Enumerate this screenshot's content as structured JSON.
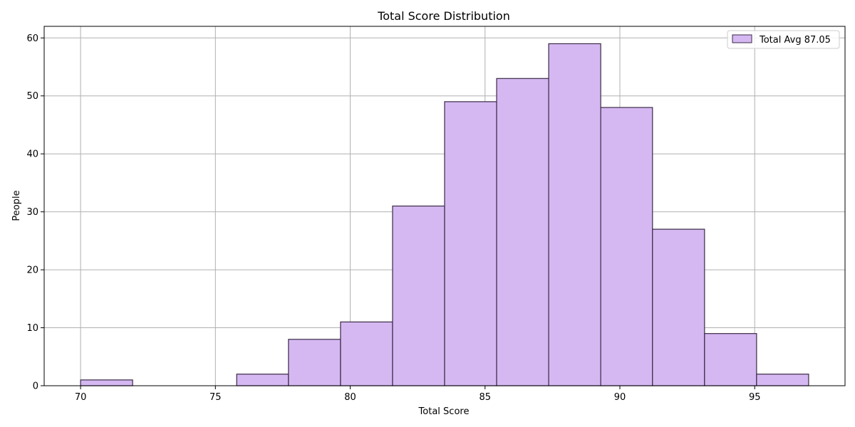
{
  "chart_data": {
    "type": "bar",
    "title": "Total Score Distribution",
    "xlabel": "Total Score",
    "ylabel": "People",
    "xlim": [
      68.65,
      98.35
    ],
    "ylim": [
      0,
      62
    ],
    "x_ticks": [
      70,
      75,
      80,
      85,
      90,
      95
    ],
    "y_ticks": [
      0,
      10,
      20,
      30,
      40,
      50,
      60
    ],
    "grid": true,
    "legend_position": "top-right",
    "bin_edges": [
      70.0,
      71.93,
      73.86,
      75.79,
      77.71,
      79.64,
      81.57,
      83.5,
      85.43,
      87.36,
      89.29,
      91.21,
      93.14,
      95.07,
      97.0
    ],
    "series": [
      {
        "name": "Total Avg 87.05",
        "values": [
          1,
          0,
          0,
          2,
          8,
          11,
          31,
          49,
          53,
          59,
          48,
          27,
          9,
          2
        ],
        "color": "#d5b8f2",
        "edge_color": "#3a2a45"
      }
    ]
  }
}
